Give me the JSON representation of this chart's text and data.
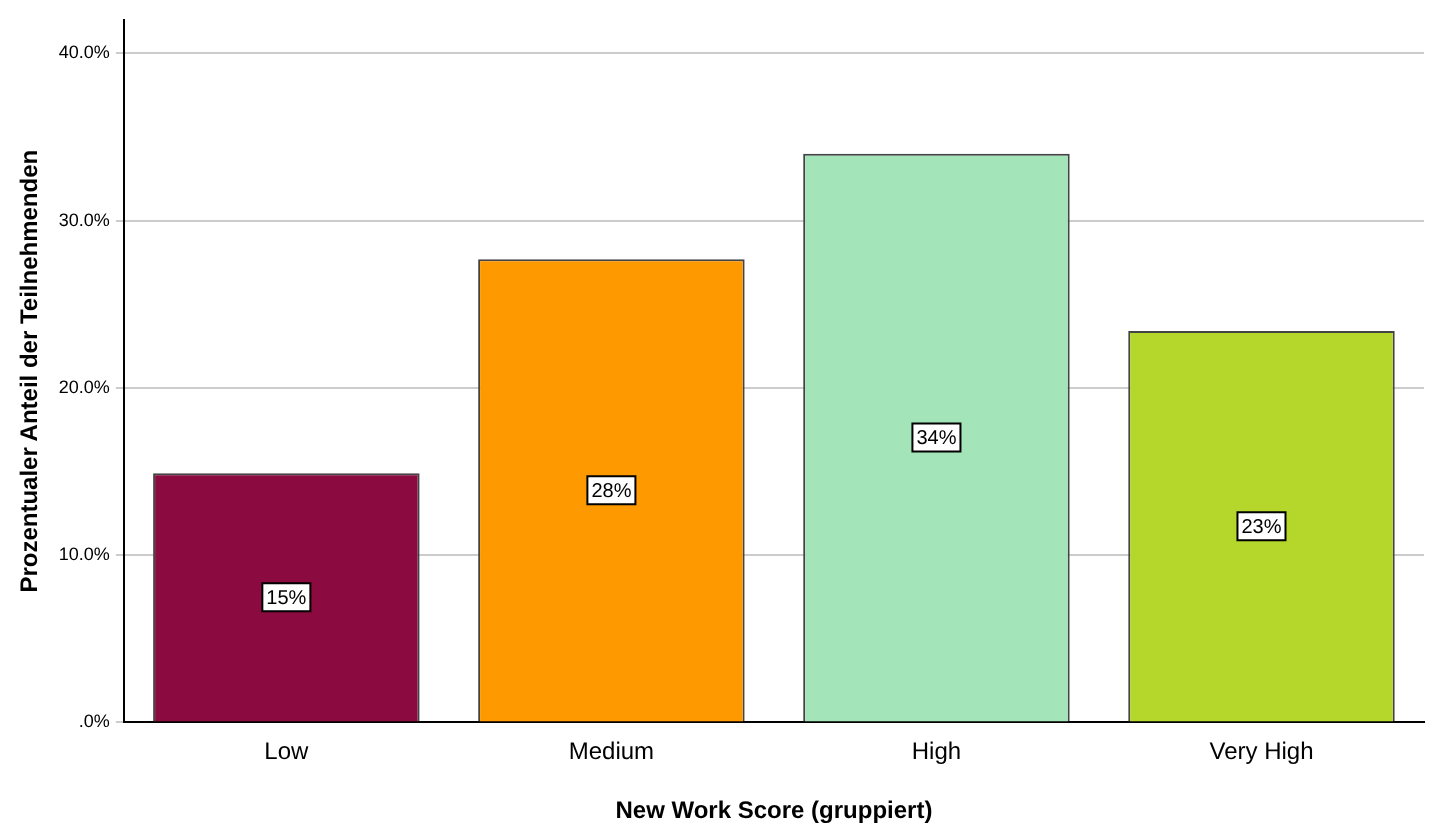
{
  "chart_data": {
    "type": "bar",
    "xlabel": "New Work Score (gruppiert)",
    "ylabel": "Prozentualer Anteil der Teilnehmenden",
    "categories": [
      "Low",
      "Medium",
      "High",
      "Very High"
    ],
    "values": [
      14.9,
      27.7,
      34.0,
      23.4
    ],
    "value_labels": [
      "15%",
      "28%",
      "34%",
      "23%"
    ],
    "colors": [
      "#8b0a3f",
      "#ff9900",
      "#a3e4b8",
      "#b5d62b"
    ],
    "ylim": [
      0,
      42
    ],
    "yticks": [
      {
        "value": 0,
        "label": ".0%"
      },
      {
        "value": 10,
        "label": "10.0%"
      },
      {
        "value": 20,
        "label": "20.0%"
      },
      {
        "value": 30,
        "label": "30.0%"
      },
      {
        "value": 40,
        "label": "40.0%"
      }
    ],
    "grid": "y",
    "legend": false
  }
}
